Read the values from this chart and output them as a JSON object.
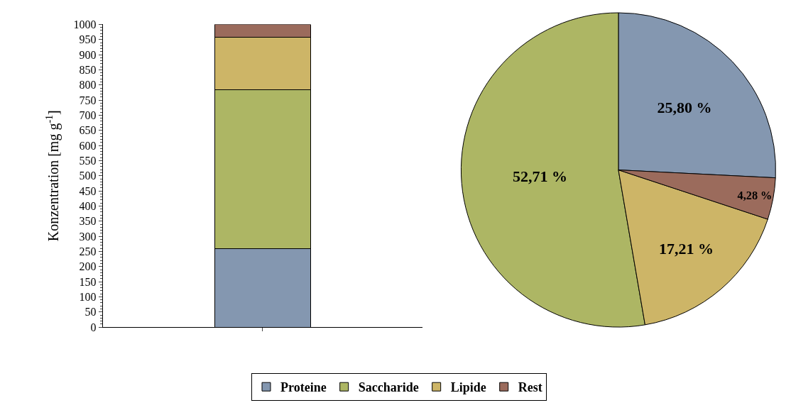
{
  "chart_data": [
    {
      "type": "bar",
      "stacked": true,
      "categories": [
        null
      ],
      "ylabel": "Konzentration [mg g$^{-1}$]",
      "ylim": [
        0,
        1000
      ],
      "yticks": [
        0,
        50,
        100,
        150,
        200,
        250,
        300,
        350,
        400,
        450,
        500,
        550,
        600,
        650,
        700,
        750,
        800,
        850,
        900,
        950,
        1000
      ],
      "legend": "bottom",
      "series": [
        {
          "name": "Proteine",
          "color": "#8497b0",
          "values": [
            258
          ]
        },
        {
          "name": "Saccharide",
          "color": "#adb664",
          "values": [
            527
          ]
        },
        {
          "name": "Lipide",
          "color": "#cdb567",
          "values": [
            172
          ]
        },
        {
          "name": "Rest",
          "color": "#9b6b5c",
          "values": [
            43
          ]
        }
      ]
    },
    {
      "type": "pie",
      "categories": [
        null,
        null,
        null,
        null
      ],
      "values": [
        25.8,
        52.71,
        17.21,
        4.28
      ],
      "colors": [
        "#8497b0",
        "#adb664",
        "#cdb567",
        "#9b6b5c"
      ],
      "value_labels": [
        "25,80 %",
        "52,71 %",
        "17,21 %",
        "4,28 %"
      ]
    }
  ]
}
